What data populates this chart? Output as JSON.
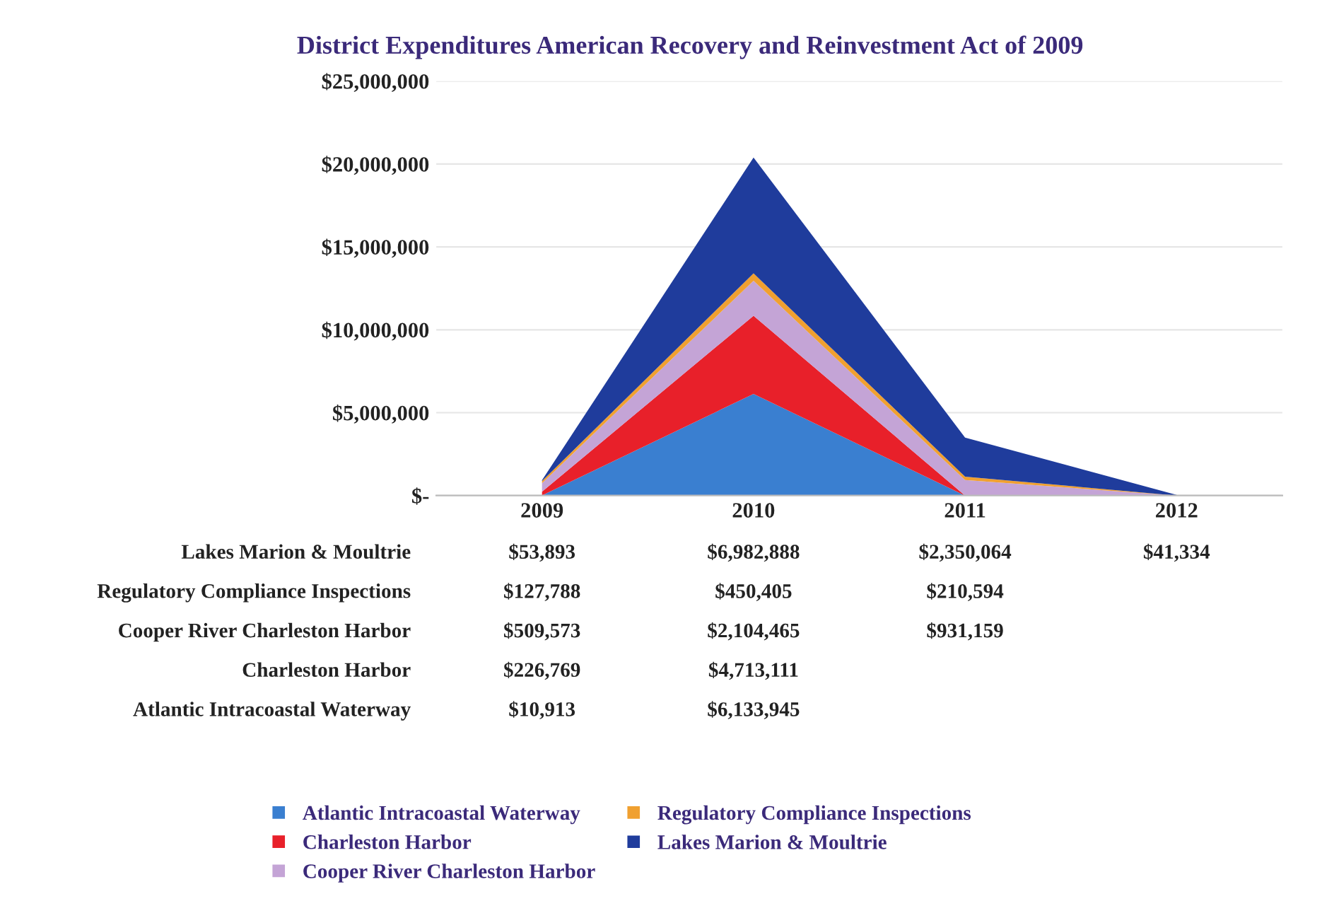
{
  "chart_data": {
    "type": "area",
    "stacked": true,
    "title": "District Expenditures American Recovery and Reinvestment Act of 2009",
    "categories": [
      "2009",
      "2010",
      "2011",
      "2012"
    ],
    "series": [
      {
        "name": "Atlantic Intracoastal Waterway",
        "color": "#3a7fd0",
        "values": [
          10913,
          6133945,
          0,
          0
        ],
        "value_labels": [
          "$10,913",
          "$6,133,945",
          null,
          null
        ]
      },
      {
        "name": "Charleston Harbor",
        "color": "#e8202a",
        "values": [
          226769,
          4713111,
          0,
          0
        ],
        "value_labels": [
          "$226,769",
          "$4,713,111",
          null,
          null
        ]
      },
      {
        "name": "Cooper River Charleston Harbor",
        "color": "#c4a4d6",
        "values": [
          509573,
          2104465,
          931159,
          0
        ],
        "value_labels": [
          "$509,573",
          "$2,104,465",
          "$931,159",
          null
        ]
      },
      {
        "name": "Regulatory Compliance Inspections",
        "color": "#f0a030",
        "values": [
          127788,
          450405,
          210594,
          0
        ],
        "value_labels": [
          "$127,788",
          "$450,405",
          "$210,594",
          null
        ]
      },
      {
        "name": "Lakes Marion & Moultrie",
        "color": "#1f3c9c",
        "values": [
          53893,
          6982888,
          2350064,
          41334
        ],
        "value_labels": [
          "$53,893",
          "$6,982,888",
          "$2,350,064",
          "$41,334"
        ]
      }
    ],
    "ylim": [
      0,
      25000000
    ],
    "yticks": [
      {
        "value": 0,
        "label": "$-"
      },
      {
        "value": 5000000,
        "label": "$5,000,000"
      },
      {
        "value": 10000000,
        "label": "$10,000,000"
      },
      {
        "value": 15000000,
        "label": "$15,000,000"
      },
      {
        "value": 20000000,
        "label": "$20,000,000"
      },
      {
        "value": 25000000,
        "label": "$25,000,000"
      }
    ],
    "grid": "y",
    "legend": "bottom"
  }
}
